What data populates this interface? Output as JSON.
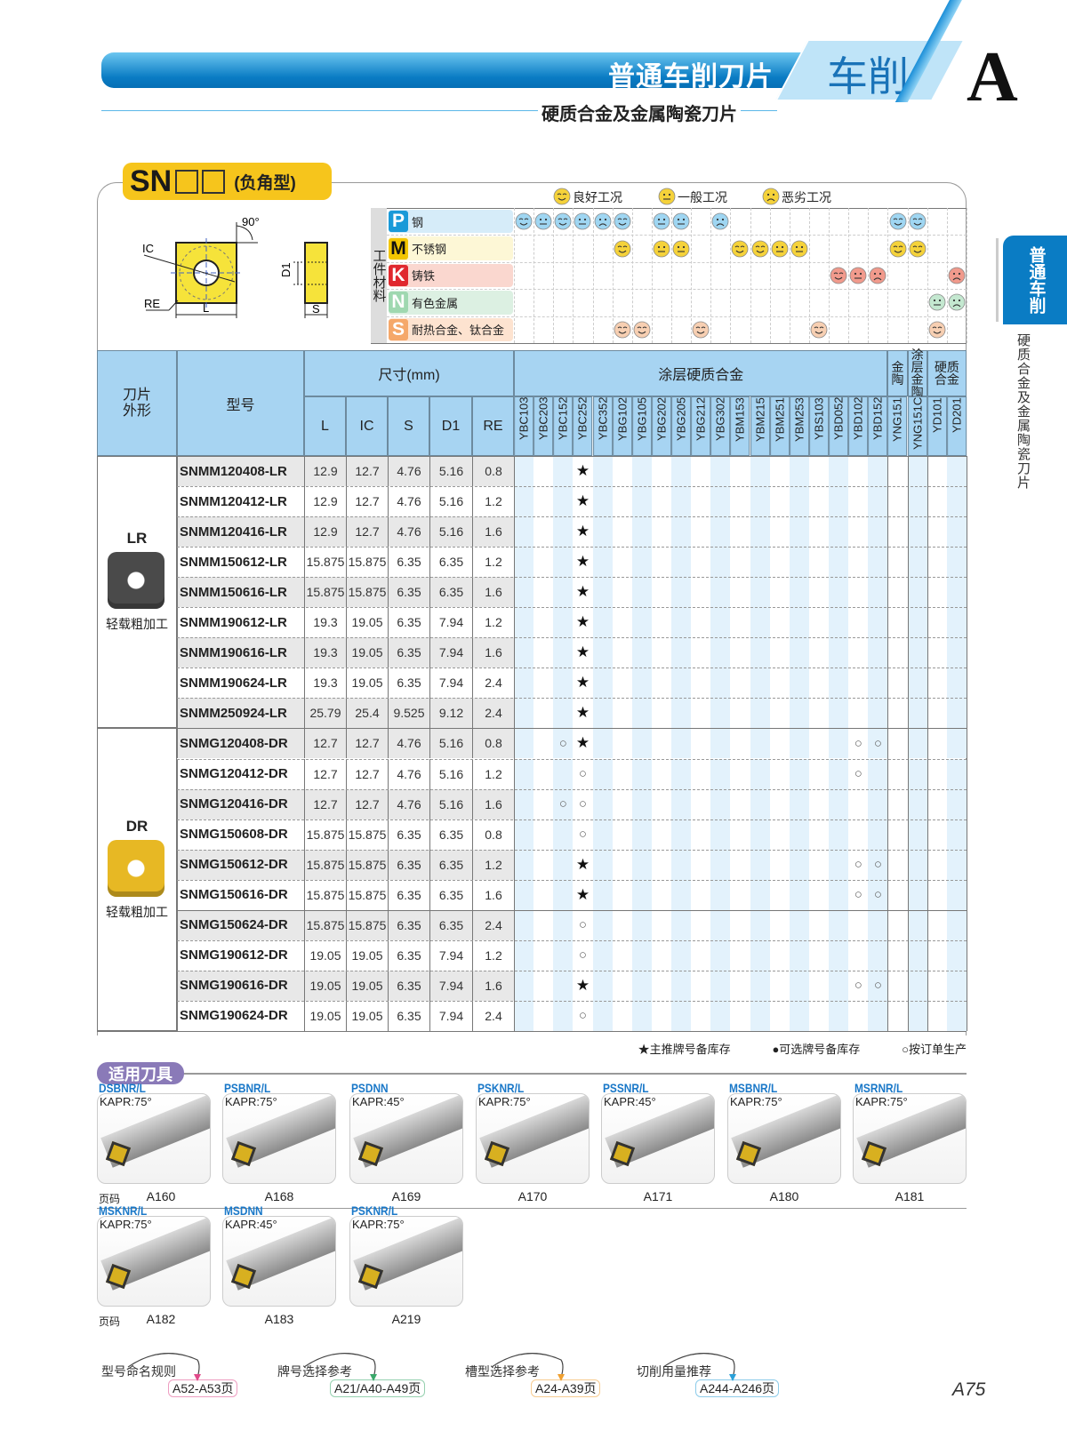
{
  "header": {
    "title": "普通车削刀片",
    "section": "车削",
    "chapter": "A",
    "subtitle": "硬质合金及金属陶瓷刀片"
  },
  "side_tab": {
    "label": "普通车削",
    "sub": "硬质合金及金属陶瓷刀片"
  },
  "series": {
    "code": "SN",
    "type": "(负角型)"
  },
  "diagram": {
    "angle": "90°",
    "labels": [
      "IC",
      "RE",
      "L",
      "D1",
      "S"
    ]
  },
  "condition_legend": [
    {
      "label": "良好工况",
      "face": "good"
    },
    {
      "label": "一般工况",
      "face": "neutral"
    },
    {
      "label": "恶劣工况",
      "face": "bad"
    }
  ],
  "workpiece_label": "工件材料",
  "grades": [
    "YBC103",
    "YBC203",
    "YBC152",
    "YBC252",
    "YBC352",
    "YBG102",
    "YBG105",
    "YBG202",
    "YBG205",
    "YBG212",
    "YBG302",
    "YBM153",
    "YBM215",
    "YBM251",
    "YBM253",
    "YBS103",
    "YBD052",
    "YBD102",
    "YBD152",
    "YNG151",
    "YNG151C",
    "YD101",
    "YD201"
  ],
  "materials": [
    {
      "letter": "P",
      "name": "钢",
      "color": "#1a9ad8",
      "bg": "#d6ecf9",
      "face": "#9fd6f2",
      "ratings": {
        "YBC103": "good",
        "YBC203": "neutral",
        "YBC152": "good",
        "YBC252": "neutral",
        "YBC352": "bad",
        "YBG102": "good",
        "YBG202": "neutral",
        "YBG205": "neutral",
        "YBG302": "bad",
        "YNG151": "good",
        "YNG151C": "good"
      }
    },
    {
      "letter": "M",
      "name": "不锈钢",
      "color": "#f2c500",
      "bg": "#fdf7d6",
      "face": "#f5d23a",
      "ratings": {
        "YBG102": "good",
        "YBG202": "neutral",
        "YBG205": "neutral",
        "YBM153": "good",
        "YBM215": "good",
        "YBM251": "neutral",
        "YBM253": "neutral",
        "YNG151": "good",
        "YNG151C": "good"
      }
    },
    {
      "letter": "K",
      "name": "铸铁",
      "color": "#e0282e",
      "bg": "#fad7cf",
      "face": "#f19a8c",
      "ratings": {
        "YBD052": "good",
        "YBD102": "neutral",
        "YBD152": "bad",
        "YD201": "bad"
      }
    },
    {
      "letter": "N",
      "name": "有色金属",
      "color": "#9fd8b0",
      "bg": "#dcf0e2",
      "face": "#c4e8d0",
      "ratings": {
        "YD101": "neutral",
        "YD201": "bad"
      }
    },
    {
      "letter": "S",
      "name": "耐热合金、钛合金",
      "color": "#f5a86a",
      "bg": "#fde3d0",
      "face": "#f7cfb2",
      "ratings": {
        "YBG102": "good",
        "YBG105": "good",
        "YBG212": "good",
        "YBS103": "good",
        "YD101": "good"
      }
    }
  ],
  "table_header": {
    "shape": "刀片外形",
    "model": "型号",
    "dims": "尺寸(mm)",
    "dim_cols": [
      "L",
      "IC",
      "S",
      "D1",
      "RE"
    ],
    "groups": [
      {
        "label": "涂层硬质合金",
        "span": 19
      },
      {
        "label": "金陶",
        "span": 1
      },
      {
        "label": "涂层金陶",
        "span": 1
      },
      {
        "label": "硬质合金",
        "span": 2
      }
    ]
  },
  "product_groups": [
    {
      "code": "LR",
      "desc": "轻载粗加工",
      "insert_color": "#4a4a4a",
      "rows": [
        {
          "model": "SNMM120408-LR",
          "L": "12.9",
          "IC": "12.7",
          "S": "4.76",
          "D1": "5.16",
          "RE": "0.8",
          "marks": {
            "YBC252": "star"
          }
        },
        {
          "model": "SNMM120412-LR",
          "L": "12.9",
          "IC": "12.7",
          "S": "4.76",
          "D1": "5.16",
          "RE": "1.2",
          "marks": {
            "YBC252": "star"
          }
        },
        {
          "model": "SNMM120416-LR",
          "L": "12.9",
          "IC": "12.7",
          "S": "4.76",
          "D1": "5.16",
          "RE": "1.6",
          "marks": {
            "YBC252": "star"
          }
        },
        {
          "model": "SNMM150612-LR",
          "L": "15.875",
          "IC": "15.875",
          "S": "6.35",
          "D1": "6.35",
          "RE": "1.2",
          "marks": {
            "YBC252": "star"
          }
        },
        {
          "model": "SNMM150616-LR",
          "L": "15.875",
          "IC": "15.875",
          "S": "6.35",
          "D1": "6.35",
          "RE": "1.6",
          "marks": {
            "YBC252": "star"
          }
        },
        {
          "model": "SNMM190612-LR",
          "L": "19.3",
          "IC": "19.05",
          "S": "6.35",
          "D1": "7.94",
          "RE": "1.2",
          "marks": {
            "YBC252": "star"
          }
        },
        {
          "model": "SNMM190616-LR",
          "L": "19.3",
          "IC": "19.05",
          "S": "6.35",
          "D1": "7.94",
          "RE": "1.6",
          "marks": {
            "YBC252": "star"
          }
        },
        {
          "model": "SNMM190624-LR",
          "L": "19.3",
          "IC": "19.05",
          "S": "6.35",
          "D1": "7.94",
          "RE": "2.4",
          "marks": {
            "YBC252": "star"
          }
        },
        {
          "model": "SNMM250924-LR",
          "L": "25.79",
          "IC": "25.4",
          "S": "9.525",
          "D1": "9.12",
          "RE": "2.4",
          "marks": {
            "YBC252": "star"
          }
        }
      ]
    },
    {
      "code": "DR",
      "desc": "轻载粗加工",
      "insert_color": "#e7b824",
      "rows": [
        {
          "model": "SNMG120408-DR",
          "L": "12.7",
          "IC": "12.7",
          "S": "4.76",
          "D1": "5.16",
          "RE": "0.8",
          "marks": {
            "YBC152": "circle",
            "YBC252": "star",
            "YBD102": "circle",
            "YBD152": "circle"
          }
        },
        {
          "model": "SNMG120412-DR",
          "L": "12.7",
          "IC": "12.7",
          "S": "4.76",
          "D1": "5.16",
          "RE": "1.2",
          "marks": {
            "YBC252": "circle",
            "YBD102": "circle"
          }
        },
        {
          "model": "SNMG120416-DR",
          "L": "12.7",
          "IC": "12.7",
          "S": "4.76",
          "D1": "5.16",
          "RE": "1.6",
          "marks": {
            "YBC152": "circle",
            "YBC252": "circle"
          }
        },
        {
          "model": "SNMG150608-DR",
          "L": "15.875",
          "IC": "15.875",
          "S": "6.35",
          "D1": "6.35",
          "RE": "0.8",
          "marks": {
            "YBC252": "circle"
          }
        },
        {
          "model": "SNMG150612-DR",
          "L": "15.875",
          "IC": "15.875",
          "S": "6.35",
          "D1": "6.35",
          "RE": "1.2",
          "marks": {
            "YBC252": "star",
            "YBD102": "circle",
            "YBD152": "circle"
          }
        },
        {
          "model": "SNMG150616-DR",
          "L": "15.875",
          "IC": "15.875",
          "S": "6.35",
          "D1": "6.35",
          "RE": "1.6",
          "marks": {
            "YBC252": "star",
            "YBD102": "circle",
            "YBD152": "circle"
          }
        },
        {
          "model": "SNMG150624-DR",
          "L": "15.875",
          "IC": "15.875",
          "S": "6.35",
          "D1": "6.35",
          "RE": "2.4",
          "marks": {
            "YBC252": "circle"
          }
        },
        {
          "model": "SNMG190612-DR",
          "L": "19.05",
          "IC": "19.05",
          "S": "6.35",
          "D1": "7.94",
          "RE": "1.2",
          "marks": {
            "YBC252": "circle"
          }
        },
        {
          "model": "SNMG190616-DR",
          "L": "19.05",
          "IC": "19.05",
          "S": "6.35",
          "D1": "7.94",
          "RE": "1.6",
          "marks": {
            "YBC252": "star",
            "YBD102": "circle",
            "YBD152": "circle"
          }
        },
        {
          "model": "SNMG190624-DR",
          "L": "19.05",
          "IC": "19.05",
          "S": "6.35",
          "D1": "7.94",
          "RE": "2.4",
          "marks": {
            "YBC252": "circle"
          }
        }
      ]
    }
  ],
  "mark_symbols": {
    "star": "★",
    "circle": "○"
  },
  "stock_legend": "★主推牌号备库存   ●可选牌号备库存   ○按订单生产",
  "tools_title": "适用刀具",
  "page_label": "页码",
  "tools": [
    [
      {
        "name": "DSBNR/L",
        "kapr": "KAPR:75°",
        "page": "A160"
      },
      {
        "name": "PSBNR/L",
        "kapr": "KAPR:75°",
        "page": "A168"
      },
      {
        "name": "PSDNN",
        "kapr": "KAPR:45°",
        "page": "A169"
      },
      {
        "name": "PSKNR/L",
        "kapr": "KAPR:75°",
        "page": "A170"
      },
      {
        "name": "PSSNR/L",
        "kapr": "KAPR:45°",
        "page": "A171"
      },
      {
        "name": "MSBNR/L",
        "kapr": "KAPR:75°",
        "page": "A180"
      },
      {
        "name": "MSRNR/L",
        "kapr": "KAPR:75°",
        "page": "A181"
      }
    ],
    [
      {
        "name": "MSKNR/L",
        "kapr": "KAPR:75°",
        "page": "A182"
      },
      {
        "name": "MSDNN",
        "kapr": "KAPR:45°",
        "page": "A183"
      },
      {
        "name": "PSKNR/L",
        "kapr": "KAPR:75°",
        "page": "A219"
      }
    ]
  ],
  "references": [
    {
      "label": "型号命名规则",
      "pages": "A52-A53页",
      "color": "#e04a8a"
    },
    {
      "label": "牌号选择参考",
      "pages": "A21/A40-A49页",
      "color": "#3aa86a"
    },
    {
      "label": "槽型选择参考",
      "pages": "A24-A39页",
      "color": "#f0a030"
    },
    {
      "label": "切削用量推荐",
      "pages": "A244-A246页",
      "color": "#2aa0d8"
    }
  ],
  "page_number": "A75"
}
